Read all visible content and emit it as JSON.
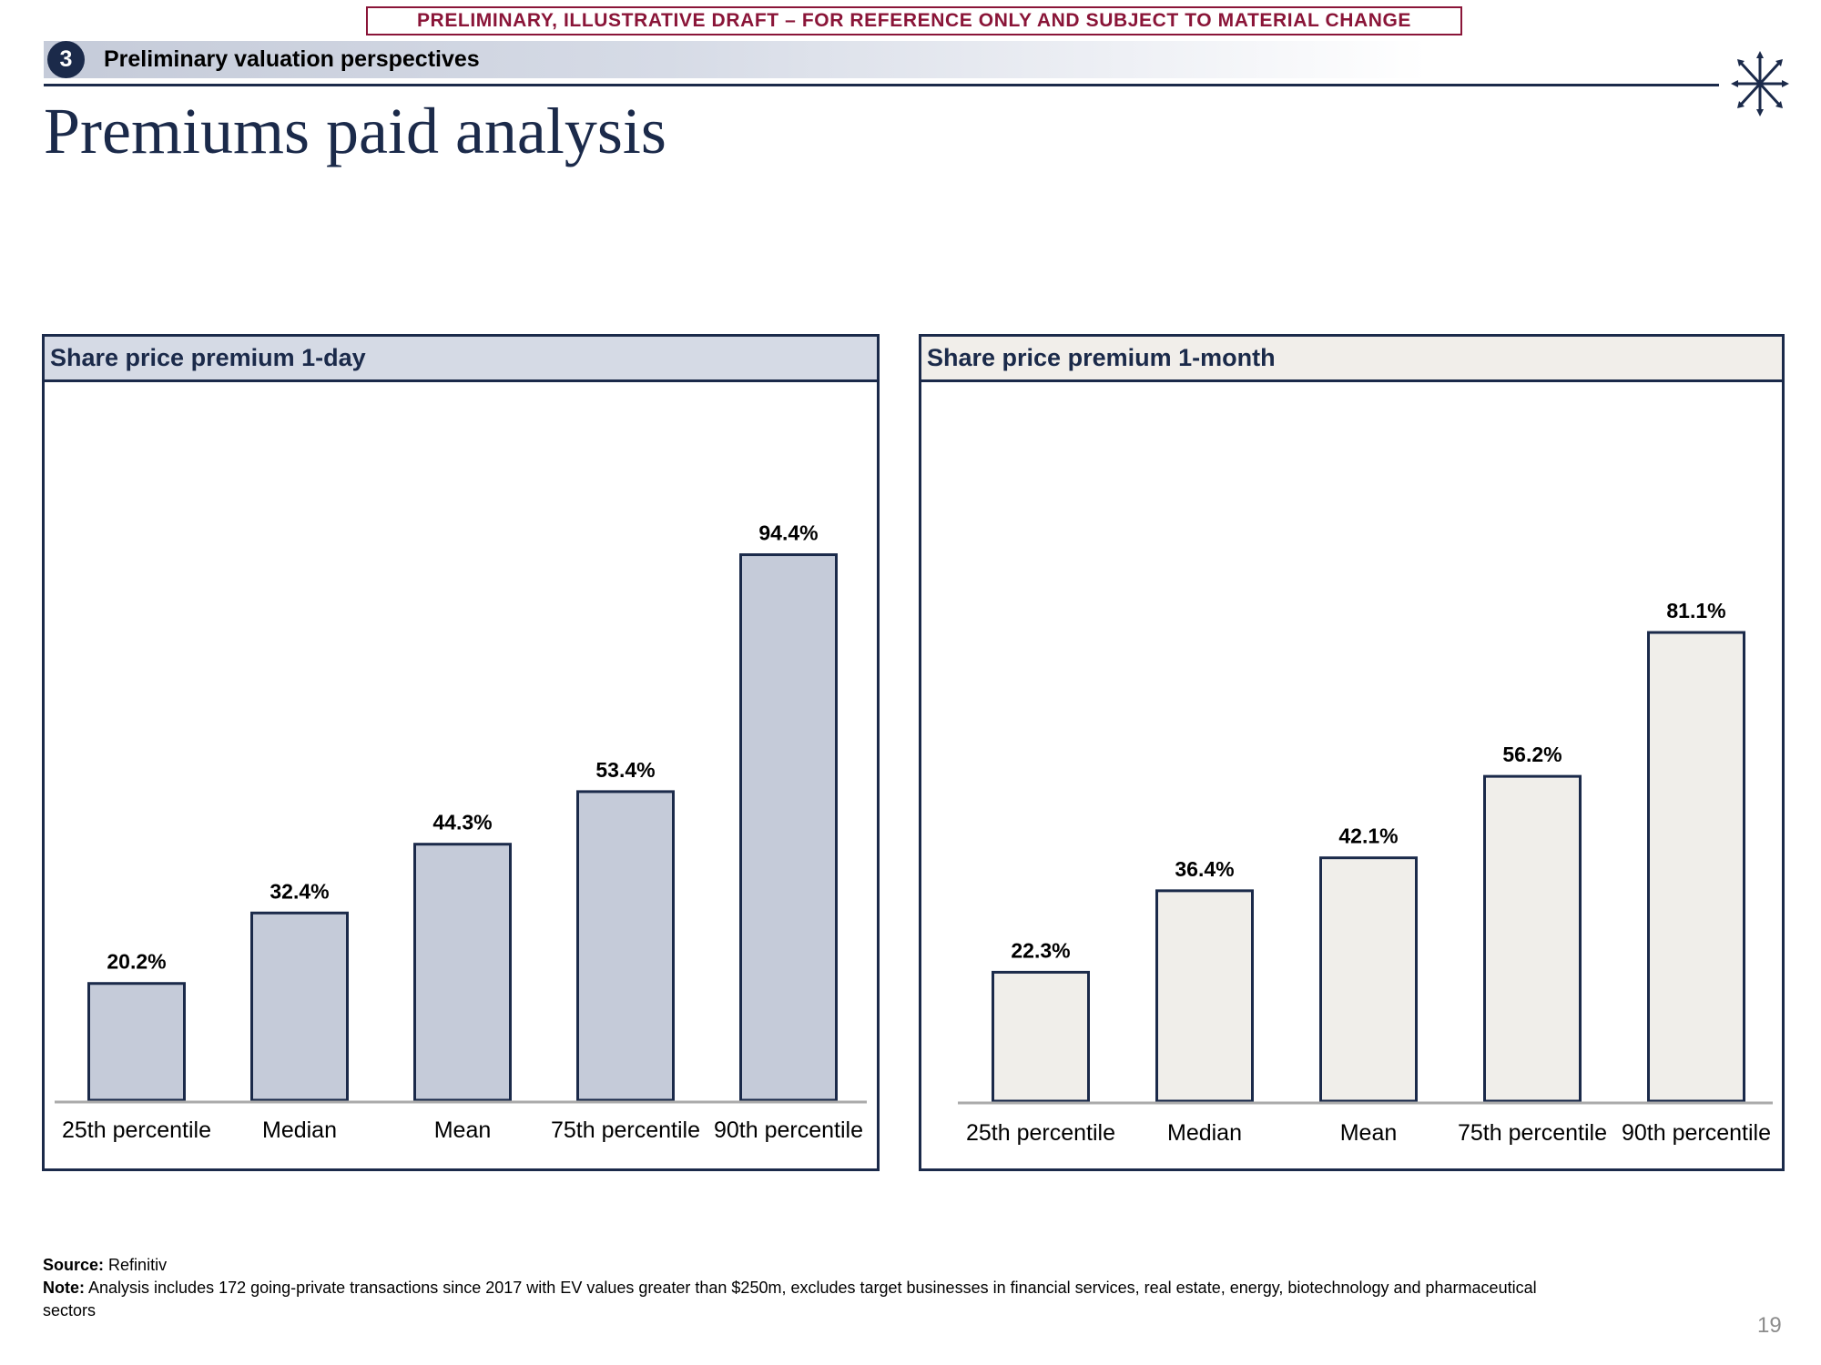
{
  "banner": "PRELIMINARY, ILLUSTRATIVE DRAFT – FOR REFERENCE ONLY AND SUBJECT TO MATERIAL CHANGE",
  "section": {
    "number": "3",
    "title": "Preliminary valuation perspectives"
  },
  "page_title": "Premiums paid analysis",
  "colors": {
    "navy": "#1b2a4a",
    "bar_1day": "#c5cbd9",
    "bar_1month": "#f0eeea",
    "draft_red": "#8a1538",
    "axis": "#aaaaaa"
  },
  "chart_data": [
    {
      "type": "bar",
      "title": "Share price premium 1-day",
      "categories": [
        "25th percentile",
        "Median",
        "Mean",
        "75th percentile",
        "90th percentile"
      ],
      "values": [
        20.2,
        32.4,
        44.3,
        53.4,
        94.4
      ],
      "value_labels": [
        "20.2%",
        "32.4%",
        "44.3%",
        "53.4%",
        "94.4%"
      ],
      "ylim": [
        0,
        100
      ],
      "grid": false,
      "legend": "none"
    },
    {
      "type": "bar",
      "title": "Share price premium 1-month",
      "categories": [
        "25th percentile",
        "Median",
        "Mean",
        "75th percentile",
        "90th percentile"
      ],
      "values": [
        22.3,
        36.4,
        42.1,
        56.2,
        81.1
      ],
      "value_labels": [
        "22.3%",
        "36.4%",
        "42.1%",
        "56.2%",
        "81.1%"
      ],
      "ylim": [
        0,
        100
      ],
      "grid": false,
      "legend": "none"
    }
  ],
  "footnotes": {
    "source_label": "Source:",
    "source_text": "Refinitiv",
    "note_label": "Note:",
    "note_text": "Analysis includes 172 going-private transactions since 2017 with EV values greater than $250m, excludes target businesses in financial services, real estate, energy, biotechnology and pharmaceutical sectors"
  },
  "page_number": "19"
}
